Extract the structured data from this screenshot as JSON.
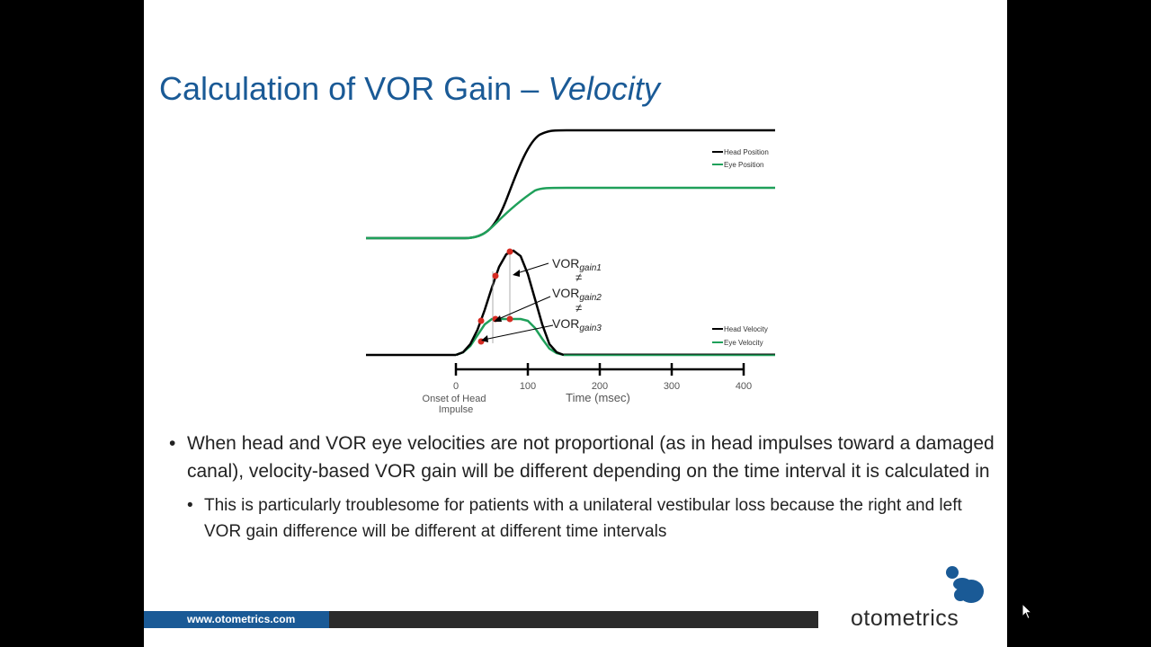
{
  "slide": {
    "title_main": "Calculation of VOR Gain  – ",
    "title_italic": "Velocity"
  },
  "chart_data": {
    "type": "line",
    "top_panel": {
      "legend": [
        "Head Position",
        "Eye Position"
      ],
      "series_colors": {
        "head": "#000000",
        "eye": "#1fa05a"
      }
    },
    "bottom_panel": {
      "legend": [
        "Head Velocity",
        "Eye Velocity"
      ],
      "annotations": {
        "vor": "VOR",
        "gain1": "gain1",
        "gain2": "gain2",
        "gain3": "gain3",
        "neq": "≠"
      },
      "head_velocity": {
        "x": [
          0,
          10,
          20,
          30,
          40,
          50,
          60,
          70,
          80,
          90,
          100,
          110,
          120,
          130,
          140,
          150
        ],
        "y": [
          0,
          3,
          12,
          28,
          50,
          75,
          98,
          112,
          116,
          110,
          90,
          62,
          34,
          12,
          3,
          0
        ]
      },
      "eye_velocity": {
        "x": [
          0,
          10,
          20,
          30,
          40,
          50,
          60,
          70,
          80,
          90,
          100,
          110,
          120,
          130,
          140,
          150
        ],
        "y": [
          0,
          3,
          10,
          22,
          34,
          40,
          40,
          40,
          40,
          40,
          38,
          30,
          18,
          7,
          2,
          0
        ]
      },
      "marked_points": {
        "head": {
          "x": [
            35,
            55,
            75
          ],
          "y": [
            38,
            88,
            115
          ]
        },
        "eye": {
          "x": [
            35,
            55,
            75
          ],
          "y": [
            15,
            40,
            40
          ]
        }
      }
    },
    "x_axis": {
      "label": "Time (msec)",
      "ticks": [
        0,
        100,
        200,
        300,
        400
      ],
      "tick_labels": [
        "0",
        "100",
        "200",
        "300",
        "400"
      ],
      "onset_label_line1": "Onset of Head",
      "onset_label_line2": "Impulse"
    }
  },
  "bullets": {
    "main": "When head and VOR eye velocities are not proportional (as in head impulses toward a damaged canal), velocity-based VOR gain will be different depending on the time interval it is calculated in",
    "sub": "This is particularly troublesome for patients with a unilateral vestibular loss because the right and left VOR gain difference will be different at different time intervals",
    "bullet_char": "•"
  },
  "footer": {
    "url": "www.otometrics.com",
    "brand": "otometrics",
    "brand_color": "#1a5a96"
  }
}
